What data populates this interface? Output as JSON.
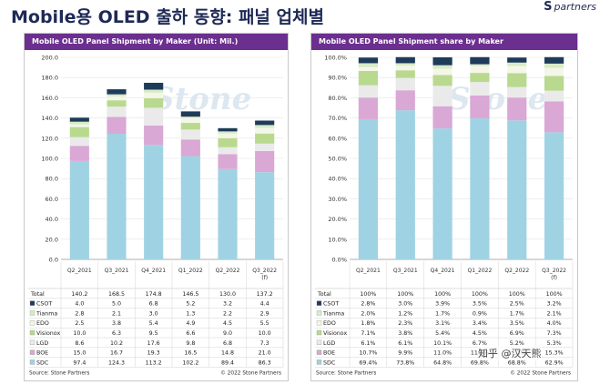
{
  "page": {
    "title": "Mobile용 OLED 출하 동향: 패널 업체별",
    "brand_mark": "S",
    "brand_text": "partners",
    "watermark": "Stone",
    "overlay_text": "知乎 @汉天熊"
  },
  "colors": {
    "header": "#6b2f8f",
    "CSOT": "#1f3b5a",
    "Tianma": "#d8ecc6",
    "EDO": "#f4f7e8",
    "Visionox": "#b9d98f",
    "LGD": "#eaeaea",
    "BOE": "#d9a8d4",
    "SDC": "#9fd3e3"
  },
  "chart_data": [
    {
      "type": "bar",
      "stacked": true,
      "title": "Mobile OLED Panel Shipment by Maker (Unit: Mil.)",
      "categories": [
        "Q2_2021",
        "Q3_2021",
        "Q4_2021",
        "Q1_2022",
        "Q2_2022",
        "Q3_2022 (f)"
      ],
      "ylim": [
        0,
        200
      ],
      "yticks": [
        "0.0",
        "20.0",
        "40.0",
        "60.0",
        "80.0",
        "100.0",
        "120.0",
        "140.0",
        "160.0",
        "180.0",
        "200.0"
      ],
      "grid": true,
      "series": [
        {
          "name": "SDC",
          "values": [
            97.4,
            124.3,
            113.2,
            102.2,
            89.4,
            86.3
          ]
        },
        {
          "name": "BOE",
          "values": [
            15.0,
            16.7,
            19.3,
            16.5,
            14.8,
            21.0
          ]
        },
        {
          "name": "LGD",
          "values": [
            8.6,
            10.2,
            17.6,
            9.8,
            6.8,
            7.3
          ]
        },
        {
          "name": "Visionox",
          "values": [
            10.0,
            6.3,
            9.5,
            6.6,
            9.0,
            10.0
          ]
        },
        {
          "name": "EDO",
          "values": [
            2.5,
            3.8,
            5.4,
            4.9,
            4.5,
            5.5
          ]
        },
        {
          "name": "Tianma",
          "values": [
            2.8,
            2.1,
            3.0,
            1.3,
            2.2,
            2.9
          ]
        },
        {
          "name": "CSOT",
          "values": [
            4.0,
            5.0,
            6.8,
            5.2,
            3.2,
            4.4
          ]
        }
      ],
      "table": {
        "header": [
          "",
          "Q2_2021",
          "Q3_2021",
          "Q4_2021",
          "Q1_2022",
          "Q2_2022",
          "Q3_2022 (f)"
        ],
        "rows": [
          [
            "Total",
            "140.2",
            "168.5",
            "174.8",
            "146.5",
            "130.0",
            "137.2"
          ],
          [
            "CSOT",
            "4.0",
            "5.0",
            "6.8",
            "5.2",
            "3.2",
            "4.4"
          ],
          [
            "Tianma",
            "2.8",
            "2.1",
            "3.0",
            "1.3",
            "2.2",
            "2.9"
          ],
          [
            "EDO",
            "2.5",
            "3.8",
            "5.4",
            "4.9",
            "4.5",
            "5.5"
          ],
          [
            "Visionox",
            "10.0",
            "6.3",
            "9.5",
            "6.6",
            "9.0",
            "10.0"
          ],
          [
            "LGD",
            "8.6",
            "10.2",
            "17.6",
            "9.8",
            "6.8",
            "7.3"
          ],
          [
            "BOE",
            "15.0",
            "16.7",
            "19.3",
            "16.5",
            "14.8",
            "21.0"
          ],
          [
            "SDC",
            "97.4",
            "124.3",
            "113.2",
            "102.2",
            "89.4",
            "86.3"
          ]
        ]
      },
      "source": "Source: Stone Partners",
      "copyright": "© 2022 Stone Partners"
    },
    {
      "type": "bar",
      "stacked": true,
      "title": "Mobile OLED Panel Shipment share by Maker",
      "categories": [
        "Q2_2021",
        "Q3_2021",
        "Q4_2021",
        "Q1_2022",
        "Q2_2022",
        "Q3_2022 (f)"
      ],
      "ylim": [
        0,
        100
      ],
      "yticks": [
        "0.0%",
        "10.0%",
        "20.0%",
        "30.0%",
        "40.0%",
        "50.0%",
        "60.0%",
        "70.0%",
        "80.0%",
        "90.0%",
        "100.0%"
      ],
      "grid": true,
      "series": [
        {
          "name": "SDC",
          "values": [
            69.4,
            73.8,
            64.8,
            69.8,
            68.8,
            62.9
          ]
        },
        {
          "name": "BOE",
          "values": [
            10.7,
            9.9,
            11.0,
            11.3,
            11.3,
            15.3
          ]
        },
        {
          "name": "LGD",
          "values": [
            6.1,
            6.1,
            10.1,
            6.7,
            5.2,
            5.3
          ]
        },
        {
          "name": "Visionox",
          "values": [
            7.1,
            3.8,
            5.4,
            4.5,
            6.9,
            7.3
          ]
        },
        {
          "name": "EDO",
          "values": [
            1.8,
            2.3,
            3.1,
            3.4,
            3.5,
            4.0
          ]
        },
        {
          "name": "Tianma",
          "values": [
            2.0,
            1.2,
            1.7,
            0.9,
            1.7,
            2.1
          ]
        },
        {
          "name": "CSOT",
          "values": [
            2.8,
            3.0,
            3.9,
            3.5,
            2.5,
            3.2
          ]
        }
      ],
      "table": {
        "header": [
          "",
          "Q2_2021",
          "Q3_2021",
          "Q4_2021",
          "Q1_2022",
          "Q2_2022",
          "Q3_2022 (f)"
        ],
        "rows": [
          [
            "Total",
            "100%",
            "100%",
            "100%",
            "100%",
            "100%",
            "100%"
          ],
          [
            "CSOT",
            "2.8%",
            "3.0%",
            "3.9%",
            "3.5%",
            "2.5%",
            "3.2%"
          ],
          [
            "Tianma",
            "2.0%",
            "1.2%",
            "1.7%",
            "0.9%",
            "1.7%",
            "2.1%"
          ],
          [
            "EDO",
            "1.8%",
            "2.3%",
            "3.1%",
            "3.4%",
            "3.5%",
            "4.0%"
          ],
          [
            "Visionox",
            "7.1%",
            "3.8%",
            "5.4%",
            "4.5%",
            "6.9%",
            "7.3%"
          ],
          [
            "LGD",
            "6.1%",
            "6.1%",
            "10.1%",
            "6.7%",
            "5.2%",
            "5.3%"
          ],
          [
            "BOE",
            "10.7%",
            "9.9%",
            "11.0%",
            "11.3%",
            "11.3%",
            "15.3%"
          ],
          [
            "SDC",
            "69.4%",
            "73.8%",
            "64.8%",
            "69.8%",
            "68.8%",
            "62.9%"
          ]
        ]
      },
      "source": "Source: Stone Partners",
      "copyright": "© 2022 Stone Partners"
    }
  ]
}
